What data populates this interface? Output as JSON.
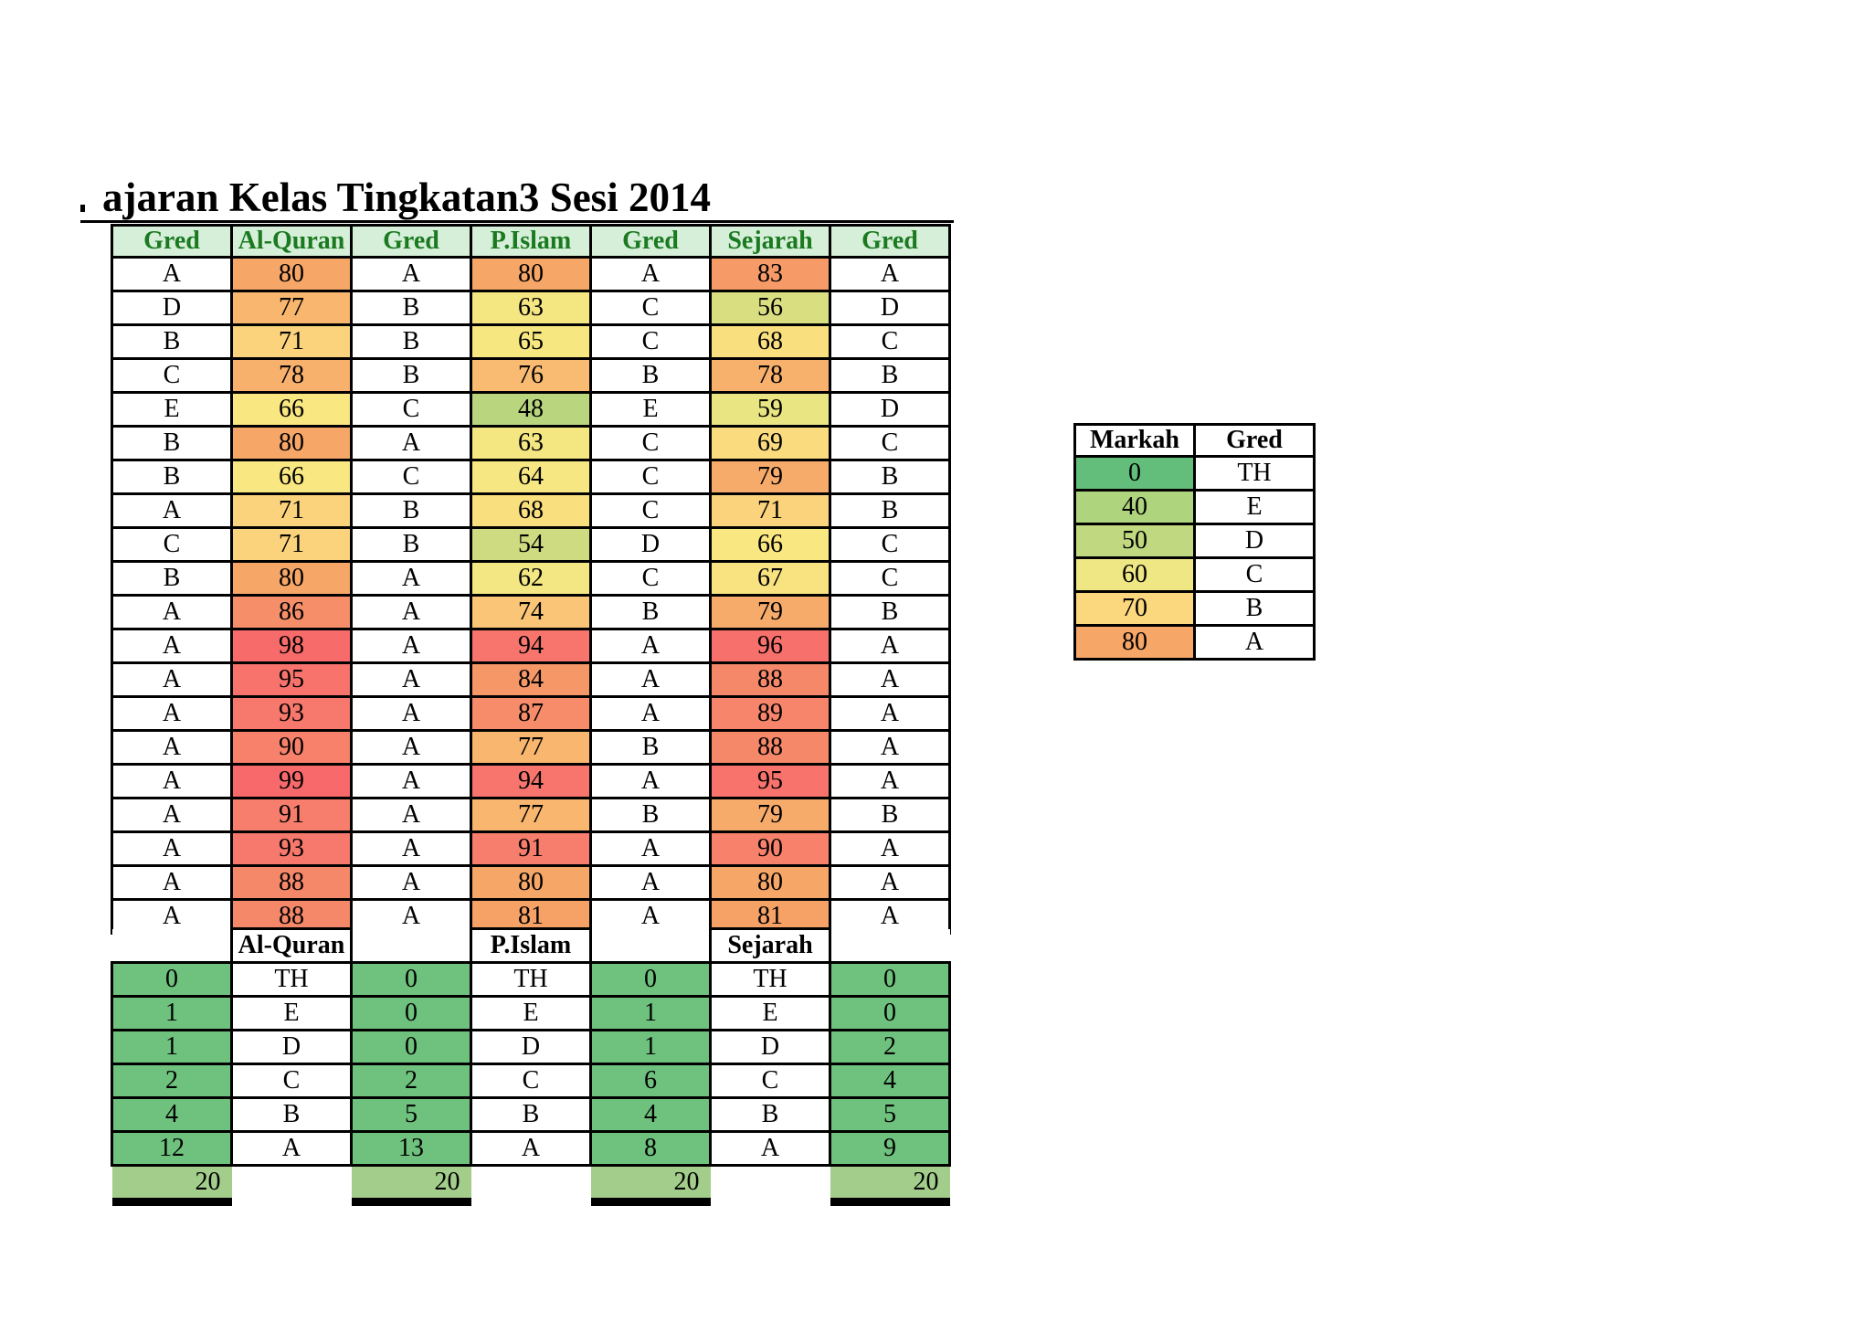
{
  "title": "ajaran Kelas Tingkatan3 Sesi 2014",
  "colors": {
    "header_bg": "#D6EFD8",
    "header_text": "#1B7A21",
    "grid_line": "#000000",
    "count_fill": "#6FC17E",
    "total_fill": "#A3CD8B",
    "scale_stops": [
      [
        0,
        "#63BE7B"
      ],
      [
        40,
        "#AFD47E"
      ],
      [
        48,
        "#B9D67E"
      ],
      [
        55,
        "#D3DC80"
      ],
      [
        60,
        "#EFE783"
      ],
      [
        66,
        "#F9E781"
      ],
      [
        71,
        "#FBD37C"
      ],
      [
        76,
        "#F9BB72"
      ],
      [
        80,
        "#F6A667"
      ],
      [
        86,
        "#F68F69"
      ],
      [
        92,
        "#F77A6C"
      ],
      [
        99,
        "#F8696B"
      ]
    ]
  },
  "main_table": {
    "headers": [
      "Gred",
      "Al-Quran",
      "Gred",
      "P.Islam",
      "Gred",
      "Sejarah",
      "Gred"
    ],
    "rows": [
      [
        "A",
        80,
        "A",
        80,
        "A",
        83,
        "A"
      ],
      [
        "D",
        77,
        "B",
        63,
        "C",
        56,
        "D"
      ],
      [
        "B",
        71,
        "B",
        65,
        "C",
        68,
        "C"
      ],
      [
        "C",
        78,
        "B",
        76,
        "B",
        78,
        "B"
      ],
      [
        "E",
        66,
        "C",
        48,
        "E",
        59,
        "D"
      ],
      [
        "B",
        80,
        "A",
        63,
        "C",
        69,
        "C"
      ],
      [
        "B",
        66,
        "C",
        64,
        "C",
        79,
        "B"
      ],
      [
        "A",
        71,
        "B",
        68,
        "C",
        71,
        "B"
      ],
      [
        "C",
        71,
        "B",
        54,
        "D",
        66,
        "C"
      ],
      [
        "B",
        80,
        "A",
        62,
        "C",
        67,
        "C"
      ],
      [
        "A",
        86,
        "A",
        74,
        "B",
        79,
        "B"
      ],
      [
        "A",
        98,
        "A",
        94,
        "A",
        96,
        "A"
      ],
      [
        "A",
        95,
        "A",
        84,
        "A",
        88,
        "A"
      ],
      [
        "A",
        93,
        "A",
        87,
        "A",
        89,
        "A"
      ],
      [
        "A",
        90,
        "A",
        77,
        "B",
        88,
        "A"
      ],
      [
        "A",
        99,
        "A",
        94,
        "A",
        95,
        "A"
      ],
      [
        "A",
        91,
        "A",
        77,
        "B",
        79,
        "B"
      ],
      [
        "A",
        93,
        "A",
        91,
        "A",
        90,
        "A"
      ],
      [
        "A",
        88,
        "A",
        80,
        "A",
        80,
        "A"
      ],
      [
        "A",
        88,
        "A",
        81,
        "A",
        81,
        "A"
      ]
    ]
  },
  "summary": {
    "subject_labels": [
      "Al-Quran",
      "P.Islam",
      "Sejarah"
    ],
    "grade_order": [
      "TH",
      "E",
      "D",
      "C",
      "B",
      "A"
    ],
    "count_columns": [
      [
        0,
        1,
        1,
        2,
        4,
        12
      ],
      [
        0,
        0,
        0,
        2,
        5,
        13
      ],
      [
        0,
        1,
        1,
        6,
        4,
        8
      ],
      [
        0,
        0,
        2,
        4,
        5,
        9
      ]
    ],
    "totals": [
      20,
      20,
      20,
      20
    ]
  },
  "legend": {
    "headers": [
      "Markah",
      "Gred"
    ],
    "rows": [
      [
        0,
        "TH"
      ],
      [
        40,
        "E"
      ],
      [
        50,
        "D"
      ],
      [
        60,
        "C"
      ],
      [
        70,
        "B"
      ],
      [
        80,
        "A"
      ]
    ]
  }
}
